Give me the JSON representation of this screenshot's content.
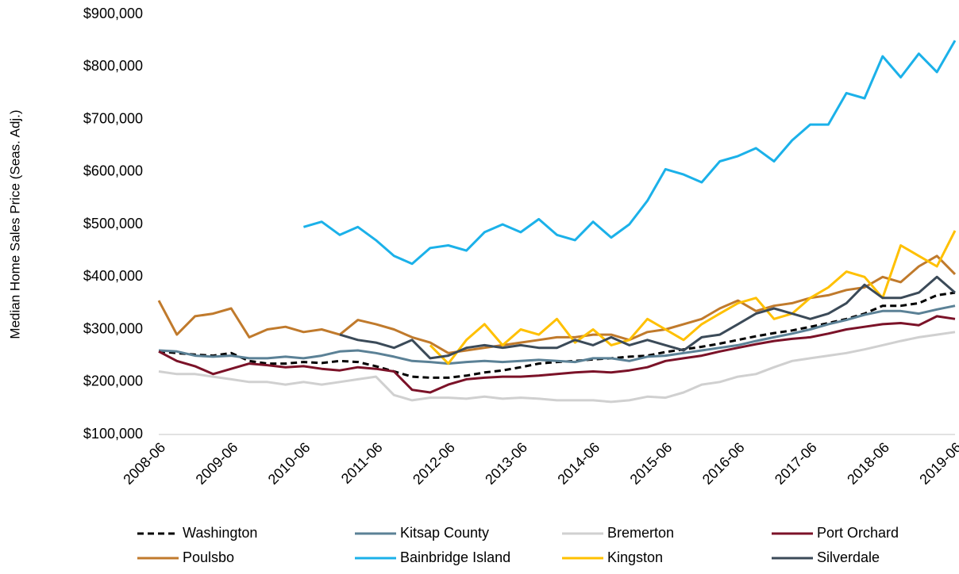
{
  "chart_data": {
    "type": "line",
    "y_axis_label": "Median Home Sales Price (Seas. Adj.)",
    "categories": [
      "2008-06",
      null,
      null,
      null,
      "2009-06",
      null,
      null,
      null,
      "2010-06",
      null,
      null,
      null,
      "2011-06",
      null,
      null,
      null,
      "2012-06",
      null,
      null,
      null,
      "2013-06",
      null,
      null,
      null,
      "2014-06",
      null,
      null,
      null,
      "2015-06",
      null,
      null,
      null,
      "2016-06",
      null,
      null,
      null,
      "2017-06",
      null,
      null,
      null,
      "2018-06",
      null,
      null,
      null,
      "2019-06"
    ],
    "ylim": [
      100000,
      900000
    ],
    "yticks": [
      {
        "value": 100000,
        "label": "$100,000"
      },
      {
        "value": 200000,
        "label": "$200,000"
      },
      {
        "value": 300000,
        "label": "$300,000"
      },
      {
        "value": 400000,
        "label": "$400,000"
      },
      {
        "value": 500000,
        "label": "$500,000"
      },
      {
        "value": 600000,
        "label": "$600,000"
      },
      {
        "value": 700000,
        "label": "$700,000"
      },
      {
        "value": 800000,
        "label": "$800,000"
      },
      {
        "value": 900000,
        "label": "$900,000"
      }
    ],
    "grid": false,
    "series": [
      {
        "name": "Washington",
        "color": "#000000",
        "dashed": true,
        "values": [
          258000,
          255000,
          252000,
          250000,
          255000,
          240000,
          235000,
          235000,
          238000,
          236000,
          240000,
          238000,
          230000,
          220000,
          210000,
          208000,
          208000,
          212000,
          218000,
          222000,
          228000,
          235000,
          238000,
          240000,
          243000,
          245000,
          248000,
          250000,
          257000,
          262000,
          267000,
          273000,
          280000,
          287000,
          293000,
          298000,
          305000,
          312000,
          320000,
          330000,
          345000,
          345000,
          350000,
          365000,
          370000
        ]
      },
      {
        "name": "Kitsap County",
        "color": "#5b8196",
        "values": [
          260000,
          258000,
          250000,
          248000,
          250000,
          245000,
          245000,
          248000,
          245000,
          250000,
          258000,
          260000,
          255000,
          248000,
          240000,
          238000,
          235000,
          238000,
          240000,
          238000,
          240000,
          242000,
          240000,
          238000,
          245000,
          245000,
          240000,
          248000,
          250000,
          255000,
          260000,
          265000,
          270000,
          278000,
          285000,
          292000,
          300000,
          310000,
          318000,
          328000,
          335000,
          335000,
          330000,
          338000,
          345000
        ]
      },
      {
        "name": "Bremerton",
        "color": "#d0d0d0",
        "values": [
          220000,
          215000,
          215000,
          210000,
          205000,
          200000,
          200000,
          195000,
          200000,
          195000,
          200000,
          205000,
          210000,
          175000,
          165000,
          170000,
          170000,
          168000,
          172000,
          168000,
          170000,
          168000,
          165000,
          165000,
          165000,
          162000,
          165000,
          172000,
          170000,
          180000,
          195000,
          200000,
          210000,
          215000,
          228000,
          240000,
          245000,
          250000,
          255000,
          262000,
          270000,
          278000,
          285000,
          290000,
          295000
        ]
      },
      {
        "name": "Port Orchard",
        "color": "#7b1228",
        "values": [
          258000,
          240000,
          230000,
          215000,
          225000,
          235000,
          232000,
          228000,
          230000,
          225000,
          222000,
          228000,
          225000,
          220000,
          185000,
          180000,
          195000,
          205000,
          208000,
          210000,
          210000,
          212000,
          215000,
          218000,
          220000,
          218000,
          222000,
          228000,
          240000,
          245000,
          250000,
          258000,
          265000,
          272000,
          278000,
          282000,
          285000,
          292000,
          300000,
          305000,
          310000,
          312000,
          308000,
          325000,
          320000
        ]
      },
      {
        "name": "Poulsbo",
        "color": "#c07a2c",
        "values": [
          355000,
          290000,
          325000,
          330000,
          340000,
          285000,
          300000,
          305000,
          295000,
          300000,
          290000,
          318000,
          310000,
          300000,
          285000,
          275000,
          255000,
          260000,
          265000,
          270000,
          275000,
          280000,
          285000,
          285000,
          290000,
          290000,
          280000,
          295000,
          300000,
          310000,
          320000,
          340000,
          355000,
          335000,
          345000,
          350000,
          360000,
          365000,
          375000,
          380000,
          400000,
          390000,
          420000,
          440000,
          405000
        ]
      },
      {
        "name": "Bainbridge Island",
        "color": "#1bb1e9",
        "values": [
          null,
          null,
          null,
          null,
          null,
          null,
          null,
          null,
          495000,
          505000,
          480000,
          495000,
          470000,
          440000,
          425000,
          455000,
          460000,
          450000,
          485000,
          500000,
          485000,
          510000,
          480000,
          470000,
          505000,
          475000,
          500000,
          545000,
          605000,
          595000,
          580000,
          620000,
          630000,
          645000,
          620000,
          660000,
          690000,
          690000,
          750000,
          740000,
          820000,
          780000,
          825000,
          790000,
          850000
        ]
      },
      {
        "name": "Kingston",
        "color": "#ffc000",
        "values": [
          null,
          null,
          null,
          null,
          null,
          null,
          null,
          null,
          null,
          null,
          null,
          null,
          null,
          null,
          null,
          270000,
          235000,
          280000,
          310000,
          270000,
          300000,
          290000,
          320000,
          275000,
          300000,
          270000,
          280000,
          320000,
          300000,
          280000,
          310000,
          330000,
          350000,
          360000,
          320000,
          330000,
          360000,
          380000,
          410000,
          400000,
          360000,
          460000,
          440000,
          420000,
          488000
        ]
      },
      {
        "name": "Silverdale",
        "color": "#3b4a58",
        "values": [
          null,
          null,
          null,
          null,
          null,
          null,
          null,
          null,
          null,
          null,
          290000,
          280000,
          275000,
          265000,
          280000,
          245000,
          250000,
          265000,
          270000,
          265000,
          270000,
          265000,
          265000,
          280000,
          270000,
          285000,
          270000,
          280000,
          270000,
          260000,
          285000,
          290000,
          310000,
          330000,
          340000,
          330000,
          320000,
          330000,
          350000,
          385000,
          360000,
          360000,
          370000,
          400000,
          370000
        ]
      }
    ]
  }
}
